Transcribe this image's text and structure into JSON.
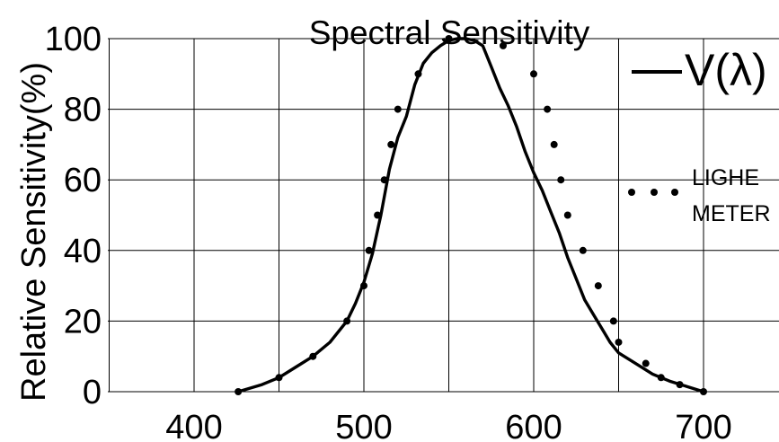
{
  "chart_data": {
    "type": "line",
    "title": "Spectral  Sensitivity",
    "ylabel": "Relative  Sensitivity(%)",
    "xlabel": "",
    "xlim": [
      400,
      700
    ],
    "ylim": [
      0,
      100
    ],
    "x_ticks": [
      400,
      500,
      600,
      700
    ],
    "y_ticks": [
      0,
      20,
      40,
      60,
      80,
      100
    ],
    "grid": true,
    "legend_position": "right",
    "series": [
      {
        "name": "V(λ)",
        "style": "solid",
        "points": [
          [
            426,
            0
          ],
          [
            440,
            2
          ],
          [
            450,
            4
          ],
          [
            460,
            7
          ],
          [
            470,
            10
          ],
          [
            480,
            14
          ],
          [
            490,
            20
          ],
          [
            495,
            25
          ],
          [
            500,
            31
          ],
          [
            505,
            39
          ],
          [
            510,
            50
          ],
          [
            515,
            63
          ],
          [
            520,
            72
          ],
          [
            525,
            78
          ],
          [
            530,
            87
          ],
          [
            535,
            93
          ],
          [
            540,
            96
          ],
          [
            545,
            98
          ],
          [
            550,
            99.5
          ],
          [
            555,
            100
          ],
          [
            560,
            100
          ],
          [
            565,
            99.5
          ],
          [
            570,
            98
          ],
          [
            575,
            92
          ],
          [
            580,
            86
          ],
          [
            585,
            81
          ],
          [
            590,
            75
          ],
          [
            595,
            68
          ],
          [
            600,
            62
          ],
          [
            605,
            57
          ],
          [
            610,
            51
          ],
          [
            615,
            45
          ],
          [
            620,
            38
          ],
          [
            625,
            32
          ],
          [
            630,
            26
          ],
          [
            635,
            22
          ],
          [
            640,
            18
          ],
          [
            645,
            14
          ],
          [
            650,
            11
          ],
          [
            660,
            8
          ],
          [
            670,
            5
          ],
          [
            680,
            3
          ],
          [
            690,
            1.5
          ],
          [
            700,
            0
          ]
        ]
      },
      {
        "name": "LIGHE\nMETER",
        "style": "dots",
        "points": [
          [
            426,
            0
          ],
          [
            450,
            4
          ],
          [
            470,
            10
          ],
          [
            490,
            20
          ],
          [
            500,
            30
          ],
          [
            503,
            40
          ],
          [
            508,
            50
          ],
          [
            512,
            60
          ],
          [
            516,
            70
          ],
          [
            520,
            80
          ],
          [
            532,
            90
          ],
          [
            550,
            100
          ],
          [
            582,
            98
          ],
          [
            600,
            90
          ],
          [
            608,
            80
          ],
          [
            612,
            70
          ],
          [
            616,
            60
          ],
          [
            620,
            50
          ],
          [
            629,
            40
          ],
          [
            638,
            30
          ],
          [
            647,
            20
          ],
          [
            650,
            14
          ],
          [
            666,
            8
          ],
          [
            675,
            4
          ],
          [
            686,
            2
          ],
          [
            700,
            0
          ]
        ]
      }
    ]
  }
}
